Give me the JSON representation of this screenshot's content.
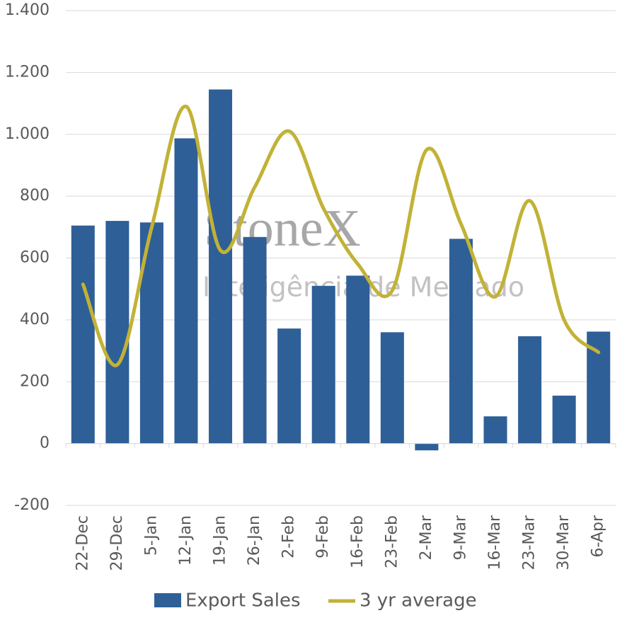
{
  "chart_data": {
    "type": "bar_line",
    "watermark": {
      "brand": "StoneX",
      "tagline": "Inteligência de Mercado"
    },
    "categories": [
      "22-Dec",
      "29-Dec",
      "5-Jan",
      "12-Jan",
      "19-Jan",
      "26-Jan",
      "2-Feb",
      "9-Feb",
      "16-Feb",
      "23-Feb",
      "2-Mar",
      "9-Mar",
      "16-Mar",
      "23-Mar",
      "30-Mar",
      "6-Apr"
    ],
    "series": [
      {
        "name": "Export Sales",
        "type": "bar",
        "color": "#2f5f97",
        "values": [
          705,
          720,
          715,
          987,
          1145,
          668,
          372,
          510,
          543,
          360,
          -22,
          662,
          88,
          347,
          155,
          362
        ]
      },
      {
        "name": "3 yr average",
        "type": "line",
        "smooth": true,
        "color": "#c2b236",
        "values": [
          515,
          255,
          700,
          1090,
          625,
          830,
          1010,
          760,
          580,
          495,
          950,
          710,
          475,
          785,
          400,
          295
        ]
      }
    ],
    "ylim": [
      -200,
      1400
    ],
    "yticks": [
      -200,
      0,
      200,
      400,
      600,
      800,
      {
        "value": 1000,
        "label": "1.000"
      },
      {
        "value": 1200,
        "label": "1.200"
      },
      {
        "value": 1400,
        "label": "1.400"
      }
    ],
    "grid": true,
    "legend": "bottom"
  }
}
